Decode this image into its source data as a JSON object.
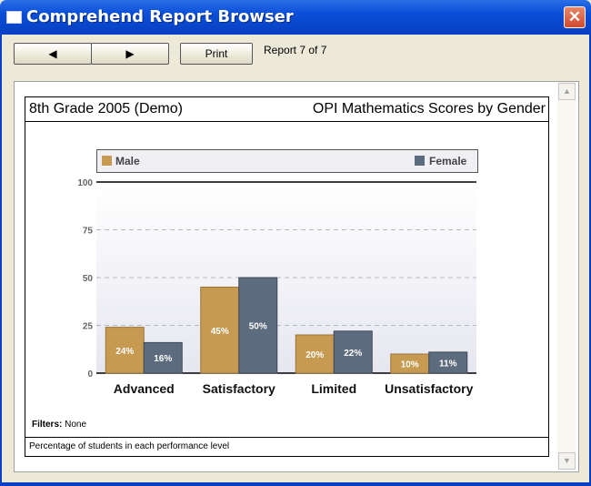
{
  "window": {
    "title": "Comprehend Report Browser",
    "close_glyph": "✕"
  },
  "toolbar": {
    "prev_glyph": "◀",
    "next_glyph": "▶",
    "print_label": "Print",
    "report_count": "Report 7 of 7"
  },
  "report": {
    "header_left": "8th Grade 2005 (Demo)",
    "header_right": "OPI Mathematics Scores by Gender",
    "filters_label": "Filters:",
    "filters_value": "None",
    "footer_note": "Percentage of students in each performance level"
  },
  "colors": {
    "male": "#c69a50",
    "female": "#5d6b7f"
  },
  "chart_data": {
    "type": "bar",
    "categories": [
      "Advanced",
      "Satisfactory",
      "Limited",
      "Unsatisfactory"
    ],
    "series": [
      {
        "name": "Male",
        "values": [
          24,
          45,
          20,
          10
        ],
        "labels": [
          "24%",
          "45%",
          "20%",
          "10%"
        ]
      },
      {
        "name": "Female",
        "values": [
          16,
          50,
          22,
          11
        ],
        "labels": [
          "16%",
          "50%",
          "22%",
          "11%"
        ]
      }
    ],
    "yticks": [
      "0",
      "25",
      "50",
      "75",
      "100"
    ],
    "ylim": [
      0,
      100
    ],
    "legend": "top",
    "grid": true
  }
}
